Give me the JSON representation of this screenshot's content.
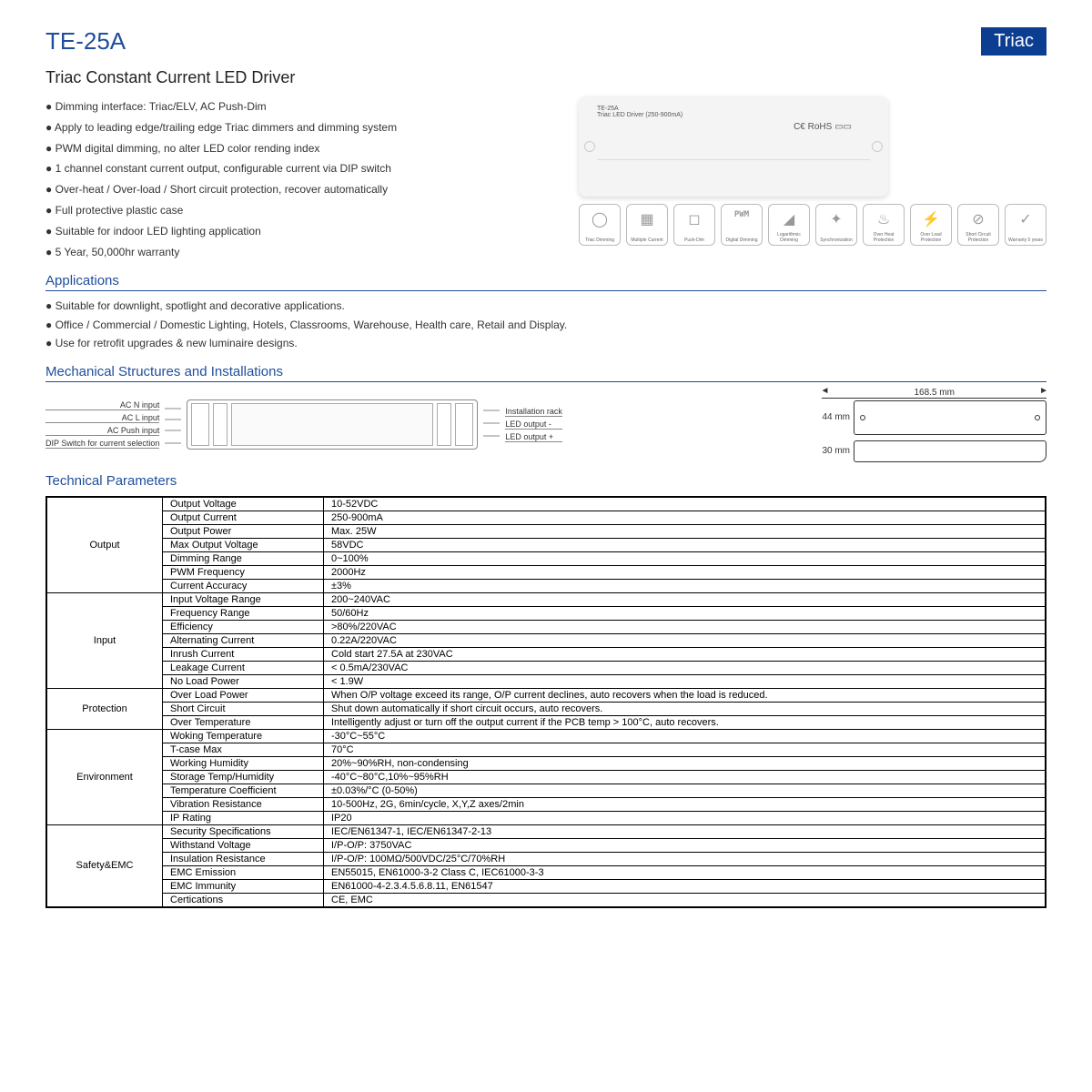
{
  "model": "TE-25A",
  "badge": "Triac",
  "subtitle": "Triac Constant Current LED Driver",
  "features": [
    "Dimming interface: Triac/ELV, AC Push-Dim",
    "Apply to leading edge/trailing edge Triac dimmers and dimming system",
    "PWM digital dimming, no alter LED color rending index",
    "1 channel constant current output, configurable current via DIP switch",
    "Over-heat / Over-load / Short circuit protection, recover automatically",
    "Full protective plastic case",
    "Suitable for indoor LED lighting application",
    "5 Year, 50,000hr warranty"
  ],
  "icons": [
    "Triac Dimming",
    "Multiple Current",
    "Push-Dim",
    "Digital Dimming",
    "Logarithmic Dimming",
    "Synchronization",
    "Over Heat Protection",
    "Over Load Protection",
    "Short Circuit Protection",
    "Warranty 5 years"
  ],
  "icon_pwm": "PWM",
  "sections": {
    "applications": "Applications",
    "mechanical": "Mechanical Structures and Installations",
    "technical": "Technical Parameters"
  },
  "applications": [
    "Suitable for downlight, spotlight and decorative applications.",
    "Office / Commercial / Domestic Lighting, Hotels, Classrooms, Warehouse, Health care, Retail and Display.",
    "Use for retrofit upgrades & new luminaire designs."
  ],
  "mech_left_labels": [
    "AC N input",
    "AC L input",
    "AC Push input",
    "DIP Switch for current selection"
  ],
  "mech_right_labels": [
    "Installation rack",
    "LED output -",
    "LED output +"
  ],
  "dim_w": "168.5 mm",
  "dim_h": "44 mm",
  "dim_d": "30 mm",
  "product_text": "TE-25A\nTriac LED Driver (250-900mA)",
  "table": [
    {
      "group": "Output",
      "rows": [
        [
          "Output Voltage",
          "10-52VDC"
        ],
        [
          "Output Current",
          "250-900mA"
        ],
        [
          "Output Power",
          "Max. 25W"
        ],
        [
          "Max Output Voltage",
          "58VDC"
        ],
        [
          "Dimming Range",
          "0~100%"
        ],
        [
          "PWM Frequency",
          "2000Hz"
        ],
        [
          "Current Accuracy",
          "±3%"
        ]
      ]
    },
    {
      "group": "Input",
      "rows": [
        [
          "Input Voltage Range",
          "200~240VAC"
        ],
        [
          "Frequency Range",
          "50/60Hz"
        ],
        [
          "Efficiency",
          ">80%/220VAC"
        ],
        [
          "Alternating Current",
          "0.22A/220VAC"
        ],
        [
          "Inrush Current",
          "Cold start 27.5A at 230VAC"
        ],
        [
          "Leakage Current",
          "< 0.5mA/230VAC"
        ],
        [
          "No Load Power",
          "< 1.9W"
        ]
      ]
    },
    {
      "group": "Protection",
      "rows": [
        [
          "Over Load Power",
          "When O/P voltage exceed its range, O/P current declines, auto recovers when the load is reduced."
        ],
        [
          "Short Circuit",
          "Shut down automatically if short circuit occurs, auto recovers."
        ],
        [
          "Over Temperature",
          "Intelligently adjust or turn off the output current if the PCB temp > 100°C, auto recovers."
        ]
      ]
    },
    {
      "group": "Environment",
      "rows": [
        [
          "Woking Temperature",
          "-30°C~55°C"
        ],
        [
          "T-case Max",
          "70°C"
        ],
        [
          "Working Humidity",
          "20%~90%RH, non-condensing"
        ],
        [
          "Storage Temp/Humidity",
          "-40°C~80°C,10%~95%RH"
        ],
        [
          "Temperature Coefficient",
          "±0.03%/°C (0-50%)"
        ],
        [
          "Vibration Resistance",
          "10-500Hz, 2G, 6min/cycle, X,Y,Z axes/2min"
        ],
        [
          "IP Rating",
          "IP20"
        ]
      ]
    },
    {
      "group": "Safety&EMC",
      "rows": [
        [
          "Security Specifications",
          "IEC/EN61347-1, IEC/EN61347-2-13"
        ],
        [
          "Withstand Voltage",
          "I/P-O/P: 3750VAC"
        ],
        [
          "Insulation Resistance",
          "I/P-O/P: 100MΩ/500VDC/25°C/70%RH"
        ],
        [
          "EMC Emission",
          "EN55015, EN61000-3-2 Class C, IEC61000-3-3"
        ],
        [
          "EMC Immunity",
          "EN61000-4-2.3.4.5.6.8.11, EN61547"
        ],
        [
          "Certications",
          "CE, EMC"
        ]
      ]
    }
  ]
}
